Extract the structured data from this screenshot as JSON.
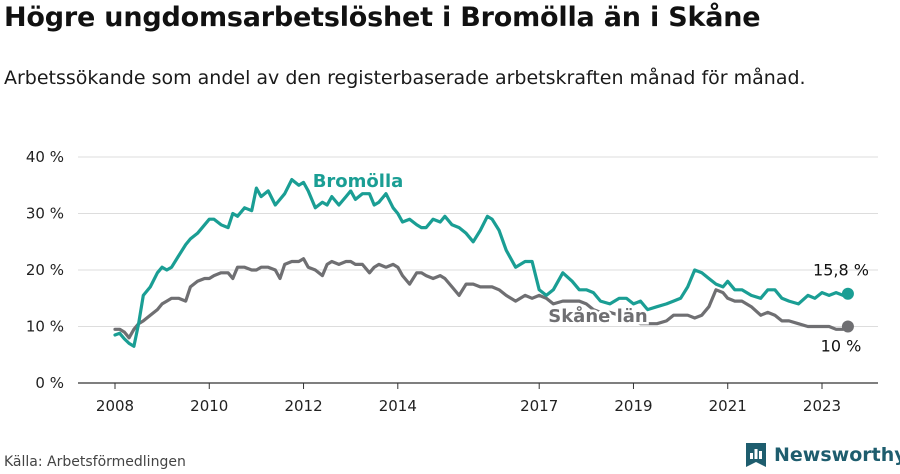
{
  "title": "Högre ungdomsarbetslöshet i Bromölla än i Skåne",
  "subtitle": "Arbetssökande som andel av den registerbaserade arbetskraften månad för månad.",
  "source": "Källa: Arbetsförmedlingen",
  "brand": "Newsworthy",
  "colors": {
    "bromolla": "#1a9e94",
    "skane": "#6f6f72",
    "grid": "#dddddd",
    "axis": "#333333",
    "brand": "#1e5d6e"
  },
  "chart_data": {
    "type": "line",
    "title": "Högre ungdomsarbetslöshet i Bromölla än i Skåne",
    "xlabel": "",
    "ylabel": "",
    "ylim": [
      0,
      40
    ],
    "xlim": [
      2008,
      2023.7
    ],
    "y_ticks": [
      0,
      10,
      20,
      30,
      40
    ],
    "y_tick_labels": [
      "0 %",
      "10 %",
      "20 %",
      "30 %",
      "40 %"
    ],
    "x_ticks": [
      2008,
      2010,
      2012,
      2014,
      2017,
      2019,
      2021,
      2023
    ],
    "x_tick_labels": [
      "2008",
      "2010",
      "2012",
      "2014",
      "2017",
      "2019",
      "2021",
      "2023"
    ],
    "grid": true,
    "series": [
      {
        "name": "Bromölla",
        "label": "Bromölla",
        "end_label": "15,8 %",
        "x": [
          2008.0,
          2008.1,
          2008.2,
          2008.3,
          2008.4,
          2008.5,
          2008.6,
          2008.75,
          2008.9,
          2009.0,
          2009.1,
          2009.2,
          2009.35,
          2009.5,
          2009.6,
          2009.75,
          2009.9,
          2010.0,
          2010.1,
          2010.25,
          2010.4,
          2010.5,
          2010.6,
          2010.75,
          2010.9,
          2011.0,
          2011.1,
          2011.25,
          2011.4,
          2011.5,
          2011.6,
          2011.75,
          2011.9,
          2012.0,
          2012.1,
          2012.25,
          2012.4,
          2012.5,
          2012.6,
          2012.75,
          2012.9,
          2013.0,
          2013.1,
          2013.25,
          2013.4,
          2013.5,
          2013.6,
          2013.75,
          2013.9,
          2014.0,
          2014.1,
          2014.25,
          2014.4,
          2014.5,
          2014.6,
          2014.75,
          2014.9,
          2015.0,
          2015.15,
          2015.3,
          2015.45,
          2015.6,
          2015.75,
          2015.9,
          2016.0,
          2016.15,
          2016.3,
          2016.5,
          2016.7,
          2016.85,
          2017.0,
          2017.15,
          2017.3,
          2017.5,
          2017.7,
          2017.85,
          2018.0,
          2018.15,
          2018.3,
          2018.5,
          2018.7,
          2018.85,
          2019.0,
          2019.15,
          2019.3,
          2019.5,
          2019.7,
          2019.85,
          2020.0,
          2020.15,
          2020.3,
          2020.45,
          2020.6,
          2020.75,
          2020.9,
          2021.0,
          2021.15,
          2021.3,
          2021.5,
          2021.7,
          2021.85,
          2022.0,
          2022.15,
          2022.3,
          2022.5,
          2022.7,
          2022.85,
          2023.0,
          2023.15,
          2023.3,
          2023.45,
          2023.55
        ],
        "values": [
          8.5,
          8.8,
          7.8,
          7.0,
          6.5,
          10.5,
          15.5,
          17.0,
          19.5,
          20.5,
          20.0,
          20.5,
          22.5,
          24.5,
          25.5,
          26.5,
          28.0,
          29.0,
          29.0,
          28.0,
          27.5,
          30.0,
          29.5,
          31.0,
          30.5,
          34.5,
          33.0,
          34.0,
          31.5,
          32.5,
          33.5,
          36.0,
          35.0,
          35.5,
          34.0,
          31.0,
          32.0,
          31.5,
          33.0,
          31.5,
          33.0,
          34.0,
          32.5,
          33.5,
          33.5,
          31.5,
          32.0,
          33.5,
          31.0,
          30.0,
          28.5,
          29.0,
          28.0,
          27.5,
          27.5,
          29.0,
          28.5,
          29.5,
          28.0,
          27.5,
          26.5,
          25.0,
          27.0,
          29.5,
          29.0,
          27.0,
          23.5,
          20.5,
          21.5,
          21.5,
          16.5,
          15.5,
          16.5,
          19.5,
          18.0,
          16.5,
          16.5,
          16.0,
          14.5,
          14.0,
          15.0,
          15.0,
          14.0,
          14.5,
          13.0,
          13.5,
          14.0,
          14.5,
          15.0,
          17.0,
          20.0,
          19.5,
          18.5,
          17.5,
          17.0,
          18.0,
          16.5,
          16.5,
          15.5,
          15.0,
          16.5,
          16.5,
          15.0,
          14.5,
          14.0,
          15.5,
          15.0,
          16.0,
          15.5,
          16.0,
          15.5,
          15.8
        ]
      },
      {
        "name": "Skåne län",
        "label": "Skåne län",
        "end_label": "10 %",
        "x": [
          2008.0,
          2008.1,
          2008.2,
          2008.3,
          2008.4,
          2008.5,
          2008.6,
          2008.75,
          2008.9,
          2009.0,
          2009.1,
          2009.2,
          2009.35,
          2009.5,
          2009.6,
          2009.75,
          2009.9,
          2010.0,
          2010.1,
          2010.25,
          2010.4,
          2010.5,
          2010.6,
          2010.75,
          2010.9,
          2011.0,
          2011.1,
          2011.25,
          2011.4,
          2011.5,
          2011.6,
          2011.75,
          2011.9,
          2012.0,
          2012.1,
          2012.25,
          2012.4,
          2012.5,
          2012.6,
          2012.75,
          2012.9,
          2013.0,
          2013.1,
          2013.25,
          2013.4,
          2013.5,
          2013.6,
          2013.75,
          2013.9,
          2014.0,
          2014.1,
          2014.25,
          2014.4,
          2014.5,
          2014.6,
          2014.75,
          2014.9,
          2015.0,
          2015.15,
          2015.3,
          2015.45,
          2015.6,
          2015.75,
          2015.9,
          2016.0,
          2016.15,
          2016.3,
          2016.5,
          2016.7,
          2016.85,
          2017.0,
          2017.15,
          2017.3,
          2017.5,
          2017.7,
          2017.85,
          2018.0,
          2018.15,
          2018.3,
          2018.5,
          2018.7,
          2018.85,
          2019.0,
          2019.15,
          2019.3,
          2019.5,
          2019.7,
          2019.85,
          2020.0,
          2020.15,
          2020.3,
          2020.45,
          2020.6,
          2020.75,
          2020.9,
          2021.0,
          2021.15,
          2021.3,
          2021.5,
          2021.7,
          2021.85,
          2022.0,
          2022.15,
          2022.3,
          2022.5,
          2022.7,
          2022.85,
          2023.0,
          2023.15,
          2023.3,
          2023.45,
          2023.55
        ],
        "values": [
          9.5,
          9.5,
          9.0,
          8.0,
          9.5,
          10.5,
          11.0,
          12.0,
          13.0,
          14.0,
          14.5,
          15.0,
          15.0,
          14.5,
          17.0,
          18.0,
          18.5,
          18.5,
          19.0,
          19.5,
          19.5,
          18.5,
          20.5,
          20.5,
          20.0,
          20.0,
          20.5,
          20.5,
          20.0,
          18.5,
          21.0,
          21.5,
          21.5,
          22.0,
          20.5,
          20.0,
          19.0,
          21.0,
          21.5,
          21.0,
          21.5,
          21.5,
          21.0,
          21.0,
          19.5,
          20.5,
          21.0,
          20.5,
          21.0,
          20.5,
          19.0,
          17.5,
          19.5,
          19.5,
          19.0,
          18.5,
          19.0,
          18.5,
          17.0,
          15.5,
          17.5,
          17.5,
          17.0,
          17.0,
          17.0,
          16.5,
          15.5,
          14.5,
          15.5,
          15.0,
          15.5,
          15.0,
          14.0,
          14.5,
          14.5,
          14.5,
          14.0,
          13.0,
          12.5,
          12.5,
          12.0,
          11.5,
          11.0,
          10.5,
          10.5,
          10.5,
          11.0,
          12.0,
          12.0,
          12.0,
          11.5,
          12.0,
          13.5,
          16.5,
          16.0,
          15.0,
          14.5,
          14.5,
          13.5,
          12.0,
          12.5,
          12.0,
          11.0,
          11.0,
          10.5,
          10.0,
          10.0,
          10.0,
          10.0,
          9.5,
          9.5,
          10.0
        ]
      }
    ]
  }
}
